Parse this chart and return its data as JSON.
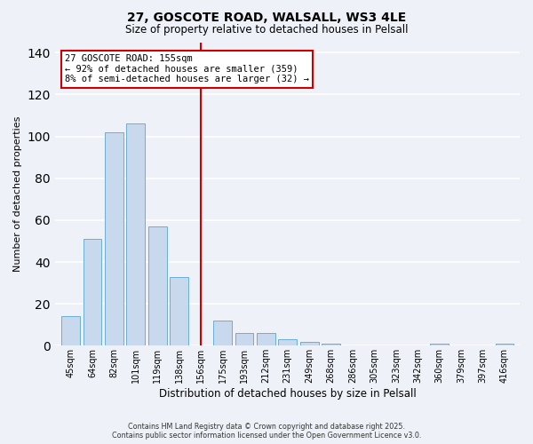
{
  "title": "27, GOSCOTE ROAD, WALSALL, WS3 4LE",
  "subtitle": "Size of property relative to detached houses in Pelsall",
  "xlabel": "Distribution of detached houses by size in Pelsall",
  "ylabel": "Number of detached properties",
  "categories": [
    "45sqm",
    "64sqm",
    "82sqm",
    "101sqm",
    "119sqm",
    "138sqm",
    "156sqm",
    "175sqm",
    "193sqm",
    "212sqm",
    "231sqm",
    "249sqm",
    "268sqm",
    "286sqm",
    "305sqm",
    "323sqm",
    "342sqm",
    "360sqm",
    "379sqm",
    "397sqm",
    "416sqm"
  ],
  "values": [
    14,
    51,
    102,
    106,
    57,
    33,
    0,
    12,
    6,
    6,
    3,
    2,
    1,
    0,
    0,
    0,
    0,
    1,
    0,
    0,
    1
  ],
  "bar_color": "#c8d9ee",
  "bar_edge_color": "#6baed6",
  "vline_index": 6,
  "vline_color": "#cc0000",
  "ylim": [
    0,
    145
  ],
  "yticks": [
    0,
    20,
    40,
    60,
    80,
    100,
    120,
    140
  ],
  "annotation_title": "27 GOSCOTE ROAD: 155sqm",
  "annotation_line1": "← 92% of detached houses are smaller (359)",
  "annotation_line2": "8% of semi-detached houses are larger (32) →",
  "annotation_box_facecolor": "#ffffff",
  "annotation_box_edgecolor": "#cc0000",
  "footer_line1": "Contains HM Land Registry data © Crown copyright and database right 2025.",
  "footer_line2": "Contains public sector information licensed under the Open Government Licence v3.0.",
  "background_color": "#eef2f8",
  "grid_color": "#ffffff",
  "title_fontsize": 10,
  "subtitle_fontsize": 8.5
}
